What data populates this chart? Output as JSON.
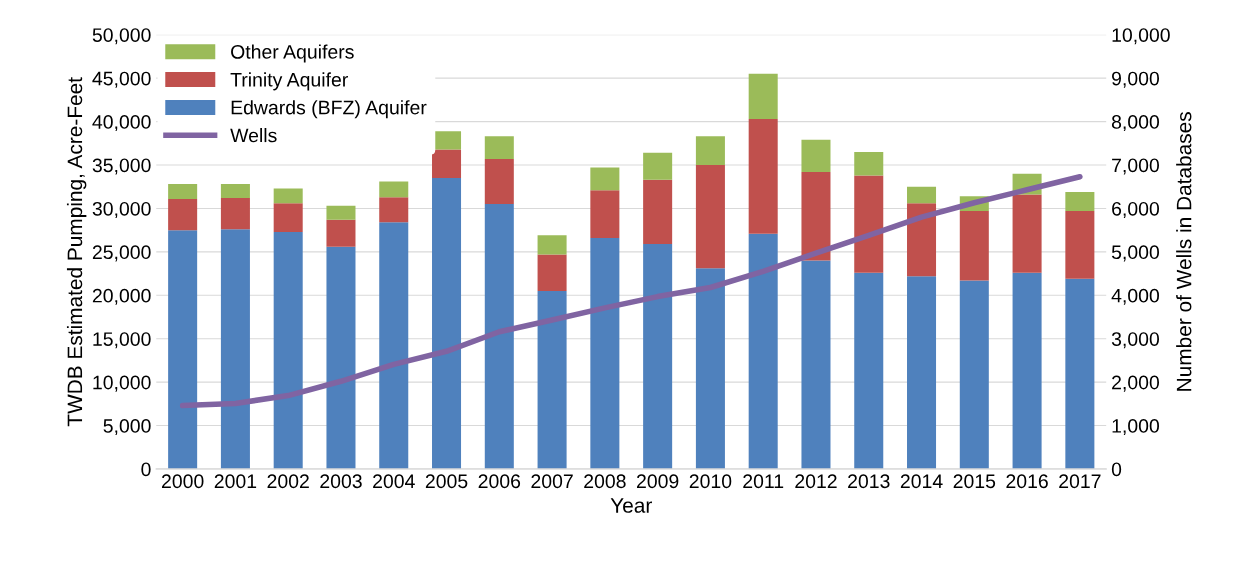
{
  "chart_data": {
    "type": "bar",
    "stacked": true,
    "xlabel": "Year",
    "ylabel": "TWDB Estimated Pumping, Acre-Feet",
    "y2label": "Number of Wells in Databases",
    "categories": [
      "2000",
      "2001",
      "2002",
      "2003",
      "2004",
      "2005",
      "2006",
      "2007",
      "2008",
      "2009",
      "2010",
      "2011",
      "2012",
      "2013",
      "2014",
      "2015",
      "2016",
      "2017"
    ],
    "series": [
      {
        "name": "Edwards (BFZ) Aquifer",
        "color": "#4f81bd",
        "values": [
          27500,
          27600,
          27300,
          25600,
          28400,
          33500,
          30500,
          20500,
          26600,
          25900,
          23100,
          27100,
          24000,
          22600,
          22200,
          21700,
          22600,
          21900
        ]
      },
      {
        "name": "Trinity Aquifer",
        "color": "#c0504d",
        "values": [
          3600,
          3600,
          3300,
          3100,
          2900,
          3300,
          5200,
          4200,
          5500,
          7400,
          11900,
          13200,
          10200,
          11200,
          8400,
          8000,
          9000,
          7800
        ]
      },
      {
        "name": "Other Aquifers",
        "color": "#9bbb59",
        "values": [
          1700,
          1600,
          1700,
          1600,
          1800,
          2100,
          2600,
          2200,
          2600,
          3100,
          3300,
          5200,
          3700,
          2700,
          1900,
          1700,
          2400,
          2200
        ]
      },
      {
        "name": "Wells",
        "type": "line",
        "axis": "y2",
        "color": "#8064a2",
        "values": [
          1460,
          1510,
          1690,
          2020,
          2410,
          2710,
          3160,
          3430,
          3710,
          3970,
          4180,
          4550,
          4970,
          5380,
          5800,
          6130,
          6430,
          6730
        ]
      }
    ],
    "ylim": [
      0,
      50000
    ],
    "yticks": [
      {
        "value": 0,
        "label": "0"
      },
      {
        "value": 5000,
        "label": "5,000"
      },
      {
        "value": 10000,
        "label": "10,000"
      },
      {
        "value": 15000,
        "label": "15,000"
      },
      {
        "value": 20000,
        "label": "20,000"
      },
      {
        "value": 25000,
        "label": "25,000"
      },
      {
        "value": 30000,
        "label": "30,000"
      },
      {
        "value": 35000,
        "label": "35,000"
      },
      {
        "value": 40000,
        "label": "40,000"
      },
      {
        "value": 45000,
        "label": "45,000"
      },
      {
        "value": 50000,
        "label": "50,000"
      }
    ],
    "y2lim": [
      0,
      10000
    ],
    "y2ticks": [
      {
        "value": 0,
        "label": "0"
      },
      {
        "value": 1000,
        "label": "1,000"
      },
      {
        "value": 2000,
        "label": "2,000"
      },
      {
        "value": 3000,
        "label": "3,000"
      },
      {
        "value": 4000,
        "label": "4,000"
      },
      {
        "value": 5000,
        "label": "5,000"
      },
      {
        "value": 6000,
        "label": "6,000"
      },
      {
        "value": 7000,
        "label": "7,000"
      },
      {
        "value": 8000,
        "label": "8,000"
      },
      {
        "value": 9000,
        "label": "9,000"
      },
      {
        "value": 10000,
        "label": "10,000"
      }
    ],
    "grid": "y",
    "legend": "top left"
  }
}
